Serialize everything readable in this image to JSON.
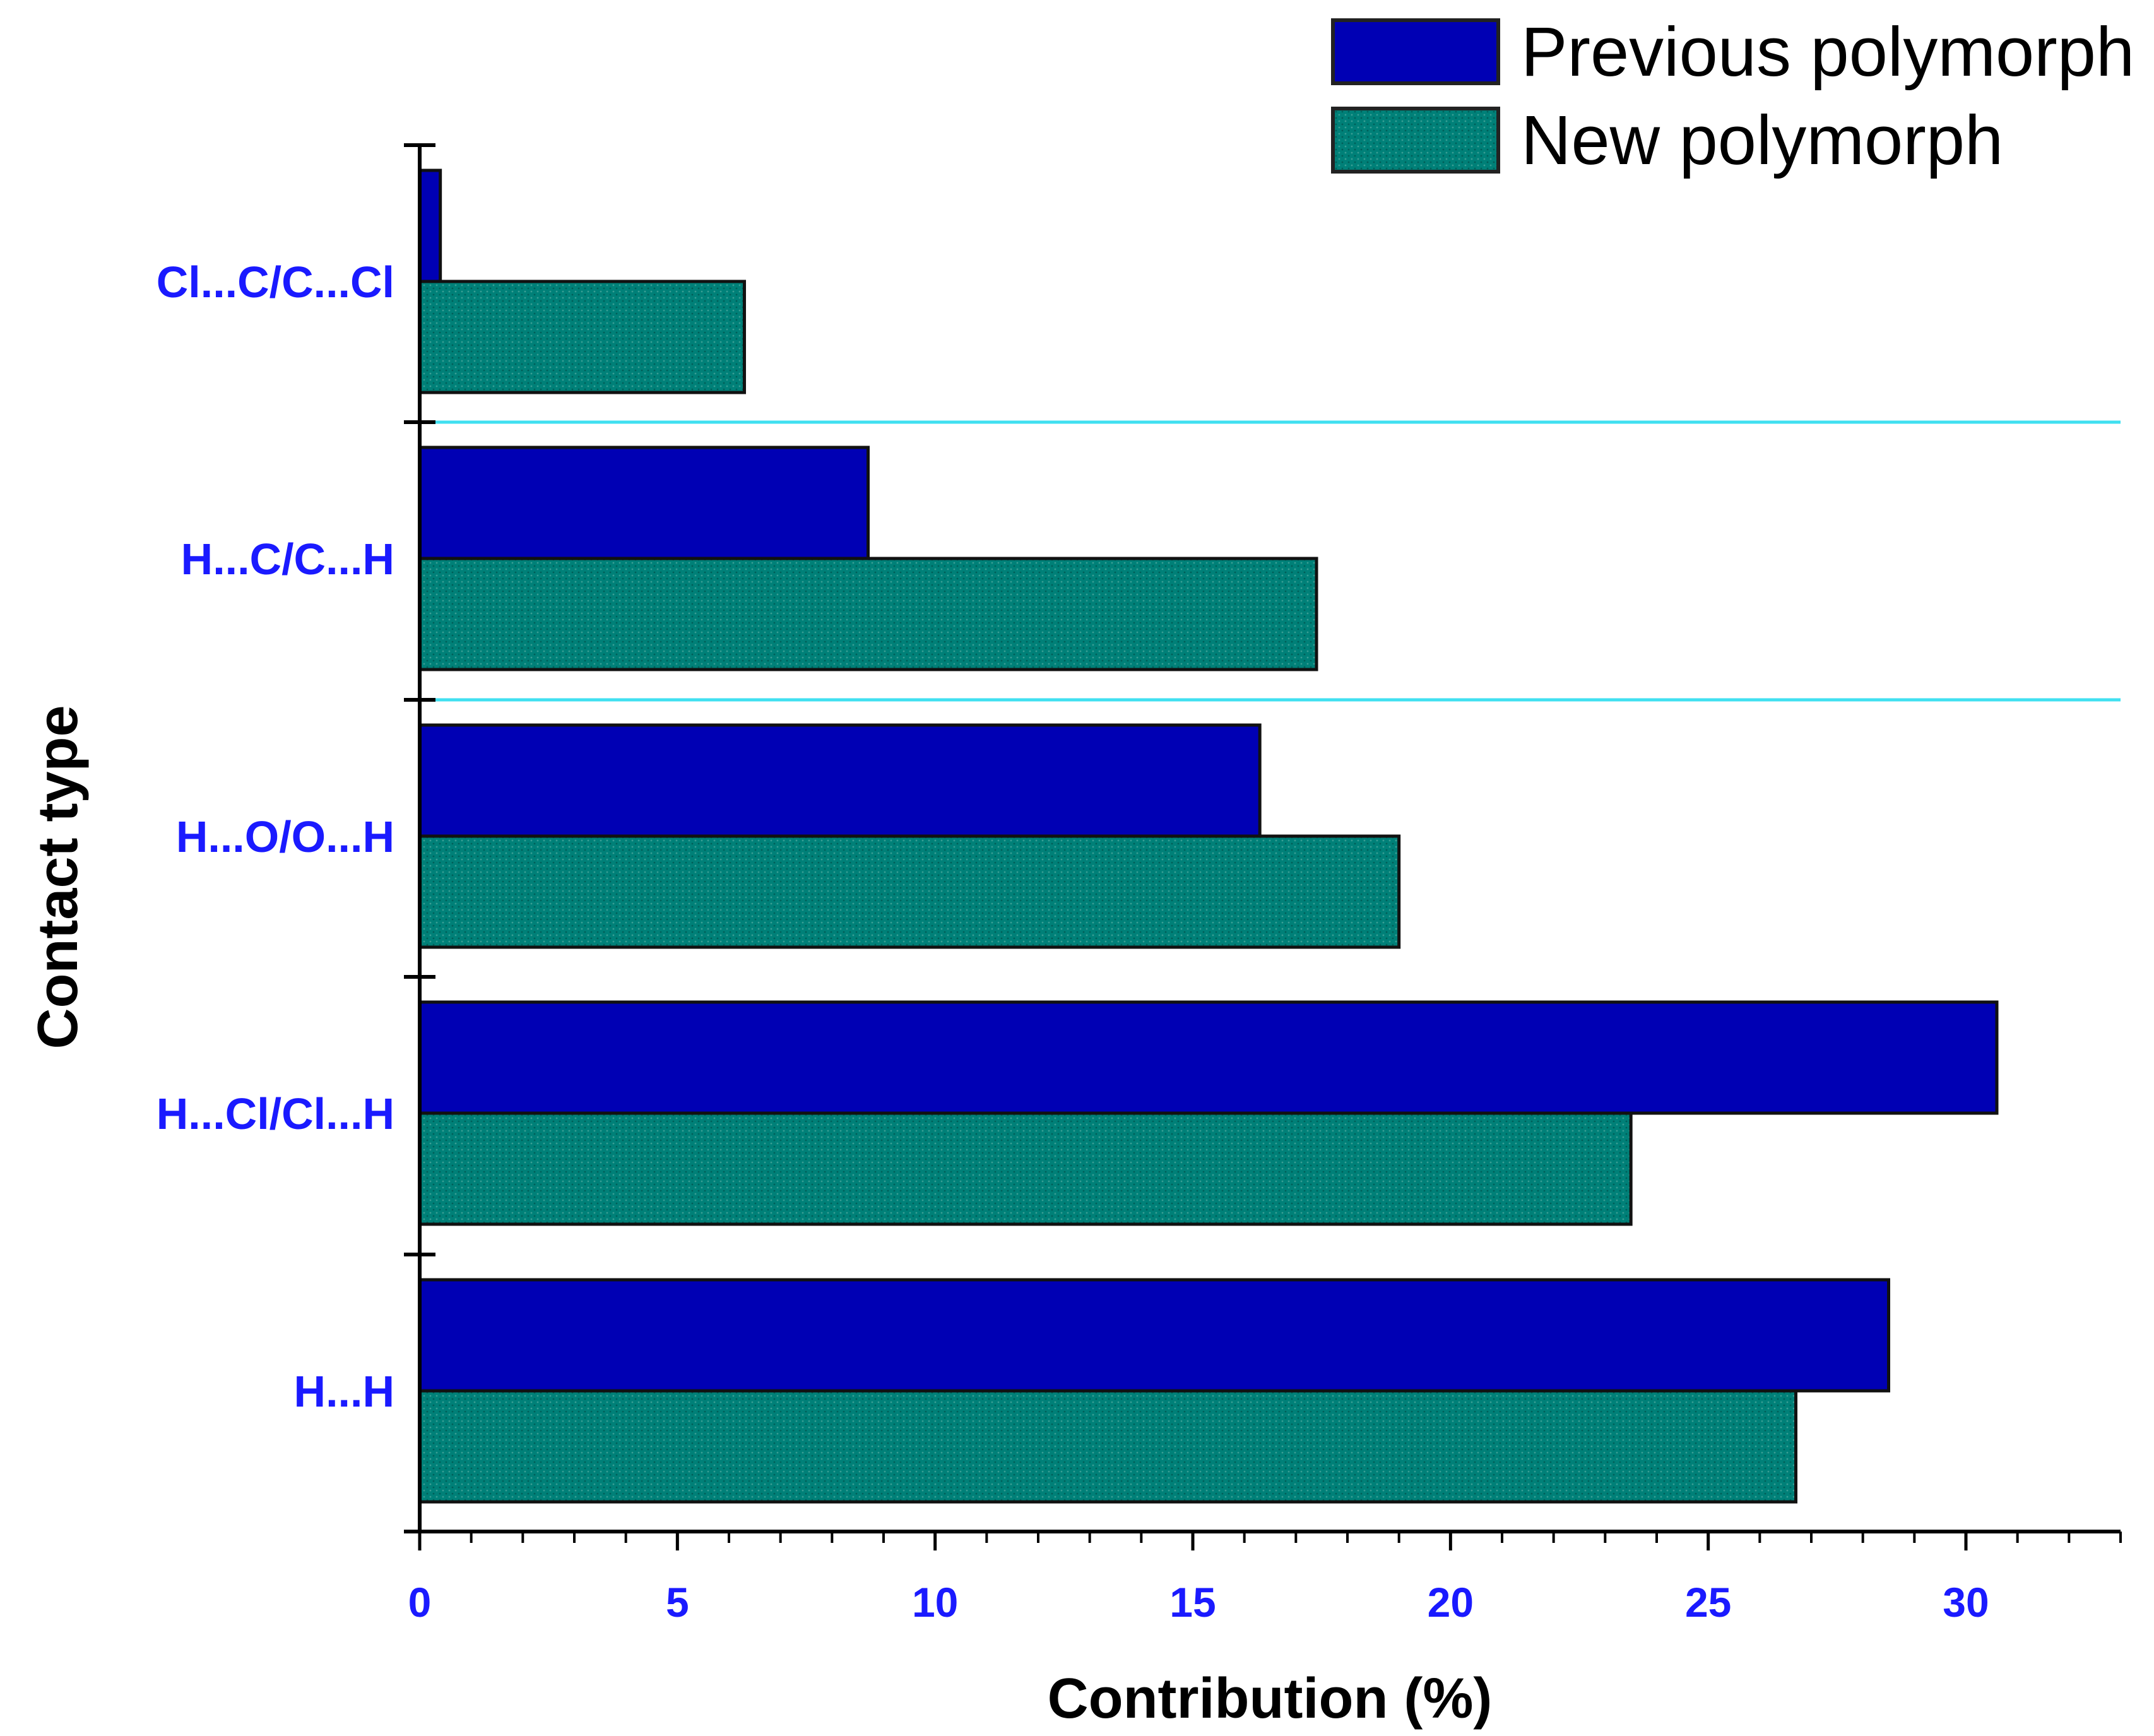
{
  "chart_data": {
    "type": "bar",
    "orientation": "horizontal",
    "title": "",
    "categories": [
      "Cl...C/C...Cl",
      "H...C/C...H",
      "H...O/O...H",
      "H...Cl/Cl...H",
      "H...H"
    ],
    "series": [
      {
        "name": "Previous polymorph",
        "color": "#0000b4",
        "values": [
          0.4,
          8.7,
          16.3,
          30.6,
          28.5
        ]
      },
      {
        "name": "New polymorph",
        "color": "#008078",
        "values": [
          6.3,
          17.4,
          19.0,
          23.5,
          26.7
        ]
      }
    ],
    "xlabel": "Contribution (%)",
    "ylabel": "Contact type",
    "xlim": [
      0,
      33
    ],
    "xticks": [
      0,
      5,
      10,
      15,
      20,
      25,
      30
    ],
    "xtick_labels": [
      "0",
      "5",
      "10",
      "15",
      "20",
      "25",
      "30"
    ],
    "legend_position": "top-right",
    "label_color": "#1a1aff",
    "separator_color": "#40e0f0"
  }
}
